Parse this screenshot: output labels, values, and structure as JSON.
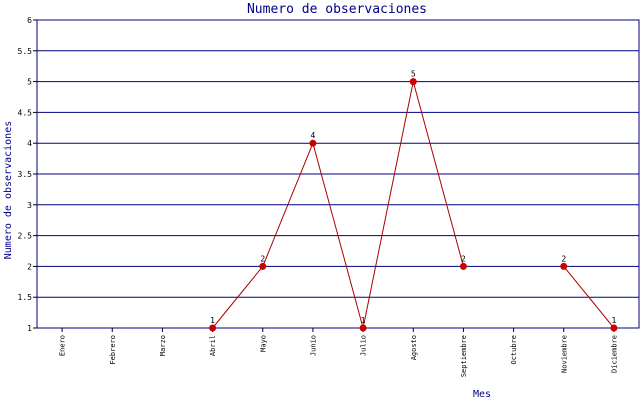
{
  "chart_data": {
    "type": "line",
    "title": "Numero de observaciones",
    "xlabel": "Mes",
    "ylabel": "Numero de observaciones",
    "categories": [
      "Enero",
      "Febrero",
      "Marzo",
      "Abril",
      "Mayo",
      "Junio",
      "Julio",
      "Agosto",
      "Septiembre",
      "Octubre",
      "Noviembre",
      "Diciembre"
    ],
    "values": [
      null,
      null,
      null,
      1,
      2,
      4,
      1,
      5,
      2,
      null,
      2,
      1
    ],
    "ylim": [
      1,
      6
    ],
    "yticks": [
      "1",
      "1.5",
      "2",
      "2.5",
      "3",
      "3.5",
      "4",
      "4.5",
      "5",
      "5.5",
      "6"
    ],
    "grid": true,
    "data_labels": true,
    "colors": {
      "line": "#aa0000",
      "marker": "#cc0000",
      "grid": "#000080",
      "text": "#00008b"
    }
  }
}
